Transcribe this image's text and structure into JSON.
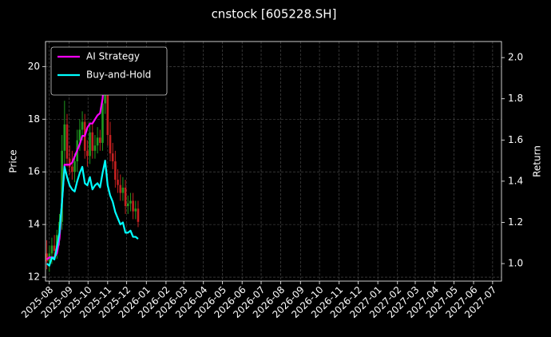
{
  "chart_data": {
    "type": "candlestick",
    "title": "cnstock [605228.SH]",
    "ylabel": "Price",
    "y2label": "Return",
    "x": [
      "2025-07-28",
      "2025-08-01",
      "2025-08-05",
      "2025-08-09",
      "2025-08-13",
      "2025-08-17",
      "2025-08-21",
      "2025-08-25",
      "2025-08-29",
      "2025-09-02",
      "2025-09-06",
      "2025-09-10",
      "2025-09-14",
      "2025-09-18",
      "2025-09-22",
      "2025-09-26",
      "2025-09-30",
      "2025-10-04",
      "2025-10-08",
      "2025-10-12",
      "2025-10-16",
      "2025-10-20",
      "2025-10-24",
      "2025-10-28",
      "2025-11-01",
      "2025-11-05",
      "2025-11-09",
      "2025-11-13",
      "2025-11-17",
      "2025-11-21",
      "2025-11-25",
      "2025-11-29",
      "2025-12-03",
      "2025-12-07",
      "2025-12-11",
      "2025-12-15",
      "2025-12-19"
    ],
    "open": [
      12.9,
      12.6,
      12.9,
      13.2,
      13.0,
      13.6,
      14.1,
      16.8,
      17.8,
      16.5,
      16.2,
      16.0,
      16.4,
      17.2,
      17.6,
      17.9,
      16.8,
      16.6,
      17.5,
      16.8,
      17.0,
      17.3,
      17.1,
      18.6,
      19.8,
      17.4,
      16.7,
      16.4,
      15.7,
      15.5,
      15.2,
      15.4,
      14.7,
      14.8,
      14.9,
      14.5,
      14.6
    ],
    "high": [
      13.4,
      13.2,
      13.5,
      13.6,
      13.8,
      14.4,
      17.4,
      18.7,
      18.2,
      17.0,
      16.8,
      16.7,
      17.6,
      18.0,
      18.3,
      18.2,
      17.2,
      17.9,
      17.9,
      17.4,
      17.7,
      17.6,
      19.0,
      20.4,
      20.1,
      17.9,
      17.1,
      16.8,
      16.1,
      15.9,
      15.8,
      15.7,
      15.1,
      15.2,
      15.2,
      14.9,
      14.9
    ],
    "low": [
      12.3,
      12.2,
      12.5,
      12.7,
      12.7,
      13.2,
      13.8,
      16.3,
      16.2,
      15.9,
      15.7,
      15.6,
      16.0,
      16.8,
      17.2,
      16.5,
      16.2,
      16.3,
      16.5,
      16.5,
      16.7,
      16.8,
      16.8,
      18.2,
      17.0,
      16.4,
      16.1,
      15.4,
      15.2,
      14.9,
      14.9,
      14.4,
      14.4,
      14.5,
      14.2,
      14.2,
      13.9
    ],
    "close": [
      12.6,
      12.9,
      13.2,
      13.0,
      13.6,
      14.1,
      16.8,
      17.8,
      16.5,
      16.2,
      16.0,
      16.4,
      17.2,
      17.6,
      17.9,
      16.8,
      16.6,
      17.5,
      16.8,
      17.0,
      17.3,
      17.1,
      18.6,
      19.8,
      17.4,
      16.7,
      16.4,
      15.7,
      15.5,
      15.2,
      15.4,
      14.7,
      14.8,
      14.9,
      14.5,
      14.6,
      14.1
    ],
    "up_color": "#1f9a1f",
    "down_color": "#c42020",
    "series": [
      {
        "name": "AI Strategy",
        "color": "#ff00ff",
        "axis": "y2",
        "values": [
          1.02,
          1.03,
          1.03,
          1.03,
          1.05,
          1.12,
          1.3,
          1.48,
          1.48,
          1.48,
          1.49,
          1.52,
          1.55,
          1.58,
          1.62,
          1.62,
          1.66,
          1.68,
          1.68,
          1.7,
          1.72,
          1.73,
          1.8,
          1.95,
          1.93,
          1.93,
          1.92,
          null,
          null,
          null,
          null,
          null,
          null,
          null,
          null,
          null,
          null
        ]
      },
      {
        "name": "Buy-and-Hold",
        "color": "#00ffff",
        "axis": "y2",
        "values": [
          1.0,
          0.99,
          1.03,
          1.02,
          1.08,
          1.15,
          1.3,
          1.47,
          1.42,
          1.38,
          1.36,
          1.35,
          1.4,
          1.44,
          1.47,
          1.39,
          1.38,
          1.42,
          1.36,
          1.38,
          1.39,
          1.37,
          1.44,
          1.5,
          1.38,
          1.33,
          1.3,
          1.25,
          1.22,
          1.19,
          1.2,
          1.15,
          1.15,
          1.16,
          1.13,
          1.13,
          1.12
        ]
      }
    ],
    "xlim": [
      "2025-07-26",
      "2027-07-15"
    ],
    "xticks": [
      "2025-08",
      "2025-09",
      "2025-10",
      "2025-11",
      "2025-12",
      "2026-01",
      "2026-02",
      "2026-03",
      "2026-04",
      "2026-05",
      "2026-06",
      "2026-07",
      "2026-08",
      "2026-09",
      "2026-10",
      "2026-11",
      "2026-12",
      "2027-01",
      "2027-02",
      "2027-03",
      "2027-04",
      "2027-05",
      "2027-06",
      "2027-07"
    ],
    "ylim": [
      11.85,
      20.95
    ],
    "yticks": [
      12,
      14,
      16,
      18,
      20
    ],
    "y2lim": [
      0.915,
      2.078
    ],
    "y2ticks": [
      {
        "value": 1,
        "label": "1.0"
      },
      1.2,
      1.4,
      1.6,
      1.8,
      {
        "value": 2,
        "label": "2.0"
      }
    ],
    "grid": true,
    "legend": "upper left"
  }
}
